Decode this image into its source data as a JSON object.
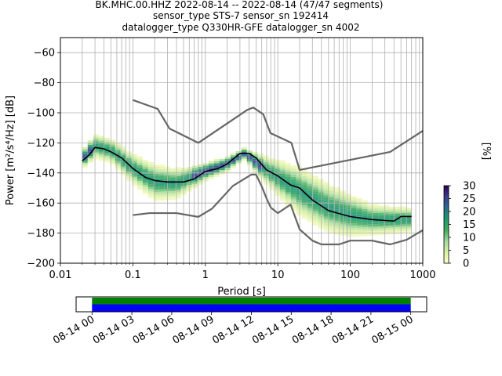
{
  "chart_data": [
    {
      "type": "heatmap",
      "title_lines": [
        "BK.MHC.00.HHZ   2022-08-14 -- 2022-08-14  (47/47 segments)",
        "sensor_type STS-7 sensor_sn 192414",
        "datalogger_type Q330HR-GFE datalogger_sn 4002"
      ],
      "xlabel": "Period [s]",
      "ylabel": "Power [m²/s⁴/Hz] [dB]",
      "xscale": "log",
      "xlim": [
        0.01,
        1000
      ],
      "ylim": [
        -200,
        -50
      ],
      "grid": true,
      "x_ticks": [
        {
          "value": 0.01,
          "label": "0.01"
        },
        {
          "value": 0.1,
          "label": "0.1"
        },
        {
          "value": 1,
          "label": "1"
        },
        {
          "value": 10,
          "label": "10"
        },
        {
          "value": 100,
          "label": "100"
        },
        {
          "value": 1000,
          "label": "1000"
        }
      ],
      "y_ticks": [
        -60,
        -80,
        -100,
        -120,
        -140,
        -160,
        -180,
        -200
      ],
      "y_tick_labels": [
        "−60",
        "−80",
        "−100",
        "−120",
        "−140",
        "−160",
        "−180",
        "−200"
      ],
      "colorbar": {
        "label": "[%]",
        "ticks": [
          0,
          5,
          10,
          15,
          20,
          25,
          30
        ],
        "range": [
          0,
          30
        ],
        "colors": [
          "#ffffcc",
          "#d9f0a3",
          "#a1d99b",
          "#41ab5d",
          "#1d9a6c",
          "#2b6c8e",
          "#3b3b8f",
          "#2d004b"
        ]
      },
      "series": [
        {
          "kind": "nhnm_upper",
          "color": "#666666",
          "points": [
            [
              0.1,
              -91.5
            ],
            [
              0.22,
              -97.4
            ],
            [
              0.32,
              -110.5
            ],
            [
              0.8,
              -120
            ],
            [
              3.8,
              -98
            ],
            [
              4.6,
              -96.5
            ],
            [
              6.3,
              -101
            ],
            [
              7.9,
              -113.5
            ],
            [
              15.4,
              -120
            ],
            [
              20,
              -138
            ],
            [
              354.8,
              -126
            ],
            [
              1000,
              -112
            ]
          ]
        },
        {
          "kind": "nlnm_lower",
          "color": "#666666",
          "points": [
            [
              0.1,
              -168
            ],
            [
              0.17,
              -166.7
            ],
            [
              0.4,
              -166.7
            ],
            [
              0.8,
              -169.2
            ],
            [
              1.24,
              -163.7
            ],
            [
              2.4,
              -148.6
            ],
            [
              4.3,
              -141.1
            ],
            [
              5,
              -141.1
            ],
            [
              6,
              -149
            ],
            [
              7,
              -157
            ],
            [
              8,
              -163
            ],
            [
              10,
              -166.7
            ],
            [
              15,
              -161
            ],
            [
              20,
              -177.5
            ],
            [
              30,
              -185
            ],
            [
              40,
              -187.5
            ],
            [
              70,
              -187.5
            ],
            [
              100,
              -185
            ],
            [
              200,
              -185
            ],
            [
              354.8,
              -187.5
            ],
            [
              600,
              -184.4
            ],
            [
              1000,
              -178
            ]
          ]
        },
        {
          "kind": "mode",
          "color": "#000000",
          "points": [
            [
              0.02,
              -132
            ],
            [
              0.025,
              -128
            ],
            [
              0.03,
              -123
            ],
            [
              0.04,
              -124
            ],
            [
              0.05,
              -126
            ],
            [
              0.07,
              -130
            ],
            [
              0.1,
              -137
            ],
            [
              0.15,
              -143
            ],
            [
              0.2,
              -145
            ],
            [
              0.3,
              -146
            ],
            [
              0.5,
              -146
            ],
            [
              0.7,
              -144
            ],
            [
              1,
              -139
            ],
            [
              1.5,
              -137
            ],
            [
              2,
              -134
            ],
            [
              3,
              -127
            ],
            [
              4,
              -127
            ],
            [
              5,
              -130
            ],
            [
              7,
              -138
            ],
            [
              10,
              -142
            ],
            [
              15,
              -148
            ],
            [
              20,
              -150
            ],
            [
              30,
              -158
            ],
            [
              50,
              -165
            ],
            [
              70,
              -167
            ],
            [
              100,
              -169
            ],
            [
              200,
              -171
            ],
            [
              400,
              -172
            ],
            [
              500,
              -169
            ],
            [
              700,
              -169
            ]
          ]
        }
      ],
      "heat_band": {
        "points": [
          [
            0.02,
            -131,
            6
          ],
          [
            0.03,
            -122,
            8
          ],
          [
            0.05,
            -125,
            8
          ],
          [
            0.1,
            -137,
            10
          ],
          [
            0.2,
            -146,
            12
          ],
          [
            0.4,
            -147,
            10
          ],
          [
            1,
            -139,
            6
          ],
          [
            2,
            -134,
            5
          ],
          [
            3.5,
            -127,
            4
          ],
          [
            6,
            -136,
            8
          ],
          [
            10,
            -143,
            12
          ],
          [
            20,
            -152,
            16
          ],
          [
            50,
            -163,
            16
          ],
          [
            100,
            -168,
            14
          ],
          [
            200,
            -171,
            10
          ],
          [
            700,
            -171,
            8
          ]
        ]
      }
    },
    {
      "type": "bar",
      "kind": "timeline",
      "x_tick_labels": [
        "08-14 00",
        "08-14 03",
        "08-14 06",
        "08-14 09",
        "08-14 12",
        "08-14 15",
        "08-14 18",
        "08-14 21",
        "08-15 00"
      ],
      "x_tick_hours": [
        0,
        3,
        6,
        9,
        12,
        15,
        18,
        21,
        24
      ],
      "xlim_hours": [
        -1.2,
        25.2
      ],
      "coverage_hours": [
        0,
        24
      ],
      "colors": {
        "top": "#008000",
        "bottom": "#0000ff"
      }
    }
  ]
}
